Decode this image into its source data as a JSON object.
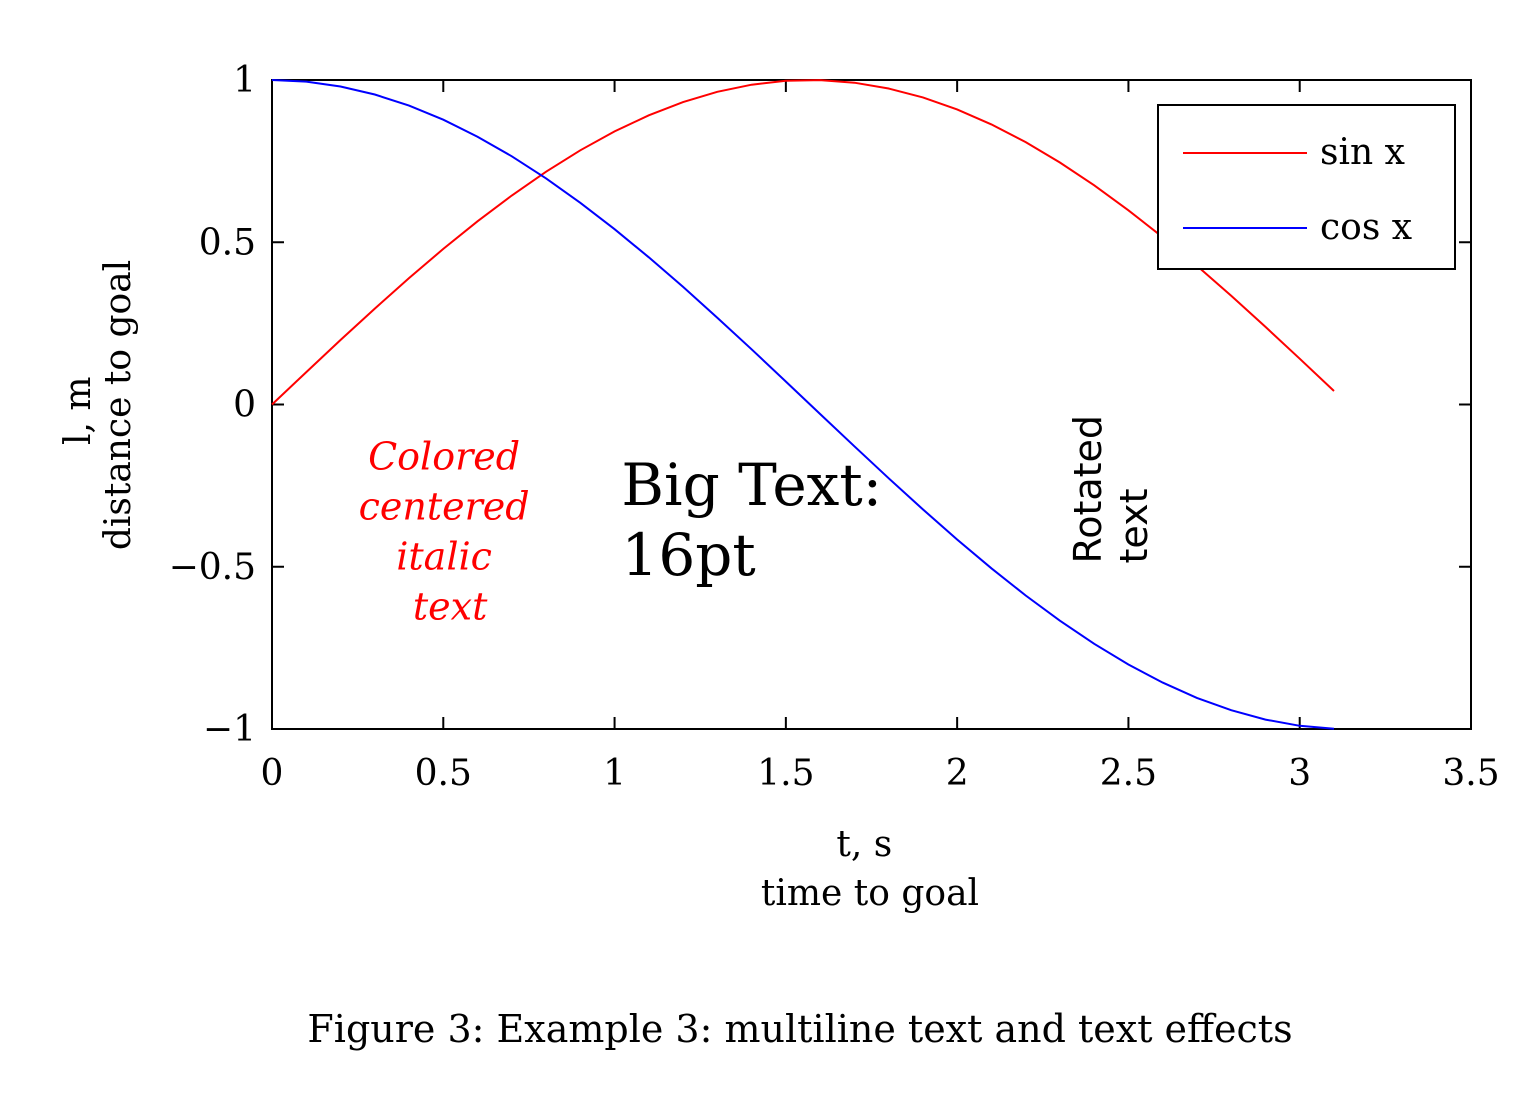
{
  "chart_data": {
    "type": "line",
    "xlabel": [
      "t, s",
      "time to goal"
    ],
    "ylabel": [
      "l, m",
      "distance to goal"
    ],
    "xlim": [
      0,
      3.5
    ],
    "ylim": [
      -1,
      1
    ],
    "xticks": [
      "0",
      "0.5",
      "1",
      "1.5",
      "2",
      "2.5",
      "3",
      "3.5"
    ],
    "yticks": [
      "1",
      "0.5",
      "0",
      "−0.5",
      "−1"
    ],
    "grid": false,
    "legend_position": "top-right",
    "series": [
      {
        "name": "sin x",
        "color": "#ff0000",
        "x": [
          0,
          0.1,
          0.2,
          0.3,
          0.4,
          0.5,
          0.6,
          0.7,
          0.8,
          0.9,
          1.0,
          1.1,
          1.2,
          1.3,
          1.4,
          1.5,
          1.6,
          1.7,
          1.8,
          1.9,
          2.0,
          2.1,
          2.2,
          2.3,
          2.4,
          2.5,
          2.6,
          2.7,
          2.8,
          2.9,
          3.0,
          3.1
        ],
        "y": [
          0,
          0.0998,
          0.1987,
          0.2955,
          0.3894,
          0.4794,
          0.5646,
          0.6442,
          0.7174,
          0.7833,
          0.8415,
          0.8912,
          0.932,
          0.9636,
          0.9854,
          0.9975,
          0.9996,
          0.9917,
          0.9738,
          0.9463,
          0.9093,
          0.8632,
          0.8085,
          0.7457,
          0.6755,
          0.5985,
          0.5155,
          0.4274,
          0.335,
          0.2392,
          0.1411,
          0.0416
        ]
      },
      {
        "name": "cos x",
        "color": "#0000ff",
        "x": [
          0,
          0.1,
          0.2,
          0.3,
          0.4,
          0.5,
          0.6,
          0.7,
          0.8,
          0.9,
          1.0,
          1.1,
          1.2,
          1.3,
          1.4,
          1.5,
          1.6,
          1.7,
          1.8,
          1.9,
          2.0,
          2.1,
          2.2,
          2.3,
          2.4,
          2.5,
          2.6,
          2.7,
          2.8,
          2.9,
          3.0,
          3.1
        ],
        "y": [
          1,
          0.995,
          0.9801,
          0.9553,
          0.9211,
          0.8776,
          0.8253,
          0.7648,
          0.6967,
          0.6216,
          0.5403,
          0.4536,
          0.3624,
          0.2675,
          0.17,
          0.0707,
          -0.0292,
          -0.1288,
          -0.2272,
          -0.3233,
          -0.4161,
          -0.5048,
          -0.5885,
          -0.6663,
          -0.7374,
          -0.8011,
          -0.8569,
          -0.9041,
          -0.9422,
          -0.971,
          -0.99,
          -0.9991
        ]
      }
    ],
    "annotations": [
      {
        "id": "colored",
        "lines": [
          "Colored",
          "centered",
          "italic",
          "text"
        ],
        "color": "#ff0000",
        "style": "italic",
        "align": "center",
        "x": 0.52,
        "y": -0.2
      },
      {
        "id": "big",
        "lines": [
          "Big Text:",
          "16pt"
        ],
        "color": "#000000",
        "style": "normal",
        "align": "left",
        "x": 1.02,
        "y": -0.31
      },
      {
        "id": "rotated",
        "lines": [
          "Rotated",
          "text"
        ],
        "color": "#000000",
        "style": "sans",
        "align": "left",
        "rotation": 90,
        "x": 2.42,
        "y": -0.49
      }
    ]
  },
  "caption": "Figure 3: Example 3: multiline text and text effects"
}
